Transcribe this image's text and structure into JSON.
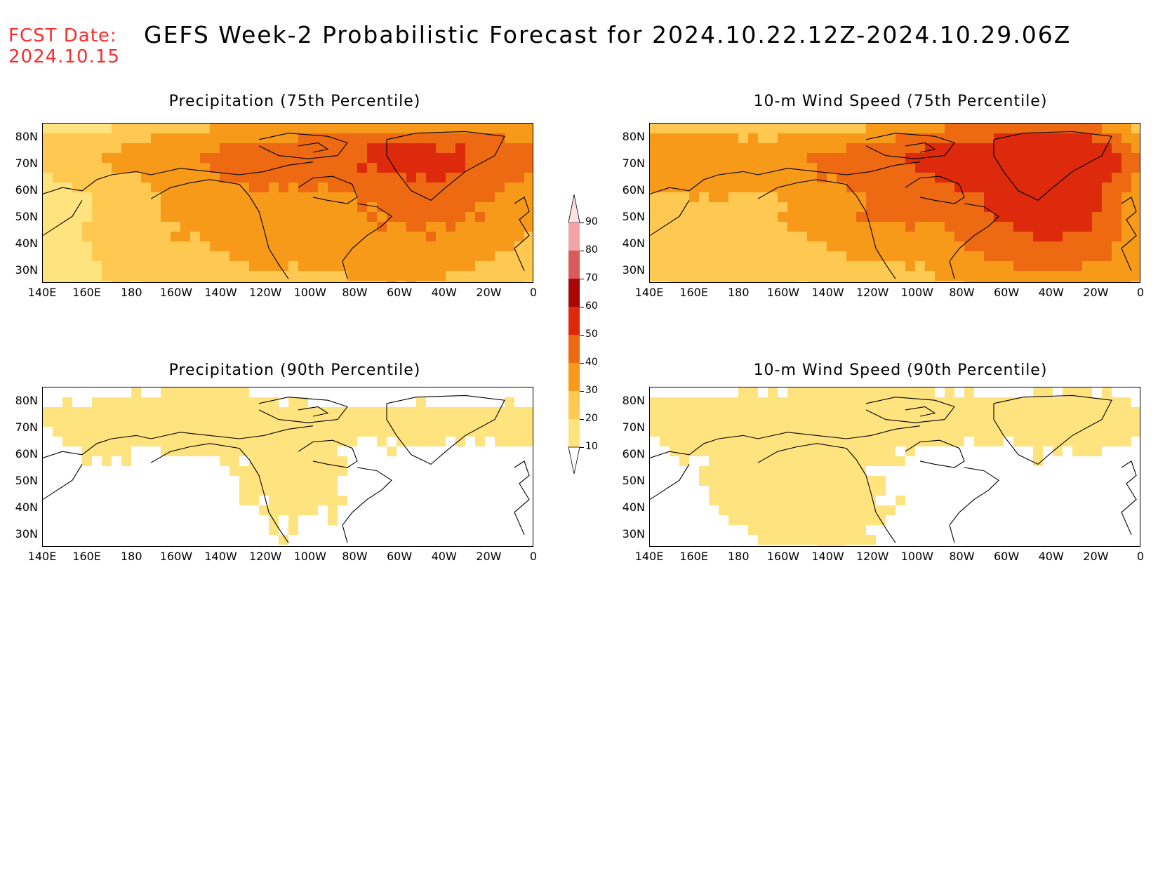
{
  "header": {
    "fcst_line1": "FCST Date:",
    "fcst_line2": "2024.10.15",
    "title": "GEFS Week-2 Probabilistic Forecast for 2024.10.22.12Z-2024.10.29.06Z"
  },
  "panels": [
    {
      "id": "precip75",
      "title": "Precipitation (75th Percentile)",
      "intensity": "high"
    },
    {
      "id": "wind75",
      "title": "10-m Wind Speed (75th Percentile)",
      "intensity": "high"
    },
    {
      "id": "precip90",
      "title": "Precipitation (90th Percentile)",
      "intensity": "low"
    },
    {
      "id": "wind90",
      "title": "10-m Wind Speed (90th Percentile)",
      "intensity": "low"
    }
  ],
  "axes": {
    "lat_labels": [
      "80N",
      "70N",
      "60N",
      "50N",
      "40N",
      "30N"
    ],
    "lon_labels": [
      "140E",
      "160E",
      "180",
      "160W",
      "140W",
      "120W",
      "100W",
      "80W",
      "60W",
      "40W",
      "20W",
      "0"
    ]
  },
  "colorbar": {
    "levels": [
      "10",
      "20",
      "30",
      "40",
      "50",
      "60",
      "70",
      "80",
      "90"
    ],
    "colors": [
      "#fff6b0",
      "#ffe37f",
      "#ffc850",
      "#f79a1a",
      "#ee6a12",
      "#dd2a0c",
      "#a80606",
      "#d95a5a",
      "#f2a3a8",
      "#fde1e4"
    ]
  }
}
